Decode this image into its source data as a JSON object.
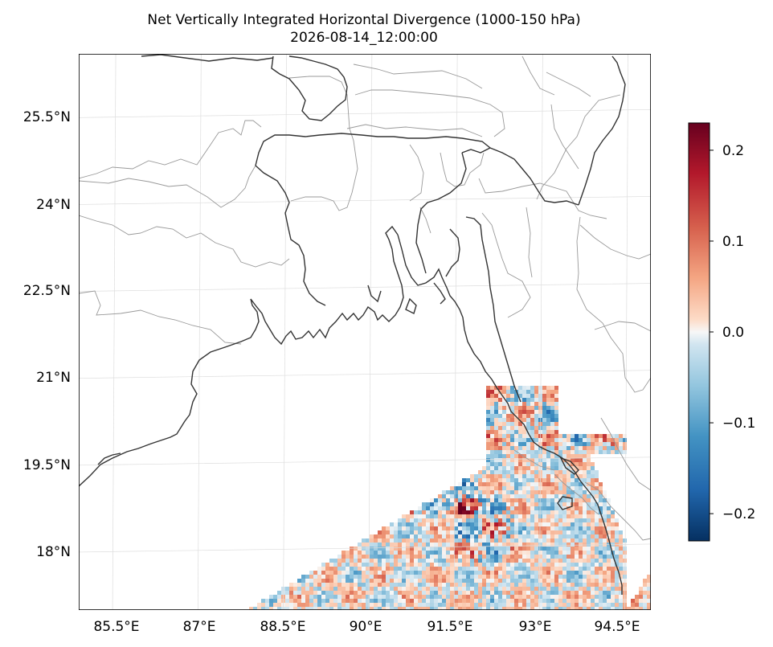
{
  "chart_data": {
    "type": "heatmap",
    "title": "Net Vertically Integrated Horizontal Divergence (1000-150 hPa)",
    "subtitle": "2026-08-14_12:00:00",
    "xlabel": "",
    "ylabel": "",
    "x_ticks": [
      "85.5°E",
      "87°E",
      "88.5°E",
      "90°E",
      "91.5°E",
      "93°E",
      "94.5°E"
    ],
    "x_tick_values": [
      85.5,
      87,
      88.5,
      90,
      91.5,
      93,
      94.5
    ],
    "y_ticks": [
      "25.5°N",
      "24°N",
      "22.5°N",
      "21°N",
      "19.5°N",
      "18°N"
    ],
    "y_tick_values": [
      25.5,
      24,
      22.5,
      21,
      19.5,
      18
    ],
    "xlim": [
      84.85,
      94.9
    ],
    "ylim": [
      17.0,
      26.6
    ],
    "grid": true,
    "colormap": "RdBu_r",
    "colorbar": {
      "vmin": -0.23,
      "vmax": 0.23,
      "ticks": [
        "0.2",
        "0.1",
        "0.0",
        "−0.1",
        "−0.2"
      ],
      "tick_values": [
        0.2,
        0.1,
        0.0,
        -0.1,
        -0.2
      ]
    },
    "data_region": {
      "description_values": "divergence field shown only over the Bay of Bengal / southern coastal strip, roughly within [-0.23, 0.23]",
      "lon_range": [
        87.5,
        94.9
      ],
      "lat_range": [
        17.0,
        20.9
      ]
    }
  },
  "colors": {
    "coastline": "#333333",
    "borders": "#999999",
    "grid": "#dddddd",
    "frame": "#000000"
  }
}
